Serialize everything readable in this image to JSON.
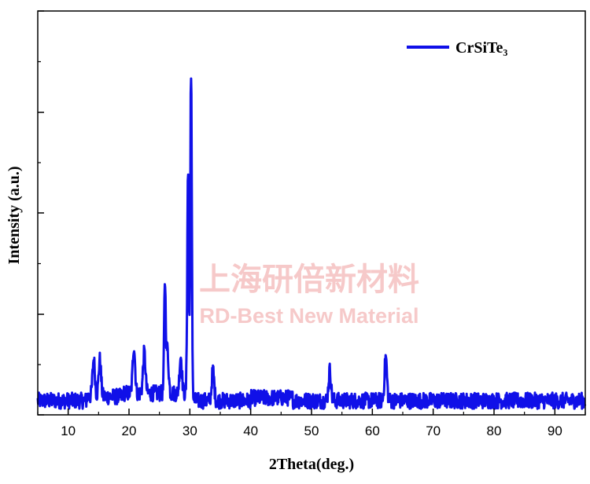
{
  "chart_data": {
    "type": "line",
    "title": "",
    "xlabel": "2Theta(deg.)",
    "ylabel": "Intensity (a.u.)",
    "xlim": [
      5,
      95
    ],
    "ylim": [
      0,
      100
    ],
    "xticks": [
      10,
      20,
      30,
      40,
      50,
      60,
      70,
      80,
      90
    ],
    "y_tick_labels_shown": false,
    "grid": false,
    "legend_position": "top-right",
    "series": [
      {
        "name": "CrSiTe₃",
        "color": "#1010e8",
        "peaks": [
          {
            "x": 14.2,
            "y": 11
          },
          {
            "x": 15.2,
            "y": 11
          },
          {
            "x": 20.8,
            "y": 14
          },
          {
            "x": 22.5,
            "y": 12
          },
          {
            "x": 25.9,
            "y": 32
          },
          {
            "x": 26.3,
            "y": 13
          },
          {
            "x": 28.5,
            "y": 11
          },
          {
            "x": 29.7,
            "y": 68
          },
          {
            "x": 30.2,
            "y": 100
          },
          {
            "x": 33.8,
            "y": 9
          },
          {
            "x": 53.0,
            "y": 9
          },
          {
            "x": 62.2,
            "y": 13
          }
        ],
        "baseline": 3.5,
        "noise_amplitude": 3
      }
    ]
  },
  "watermark": {
    "line1": "上海研倍新材料",
    "line2": "RD-Best New Material"
  }
}
